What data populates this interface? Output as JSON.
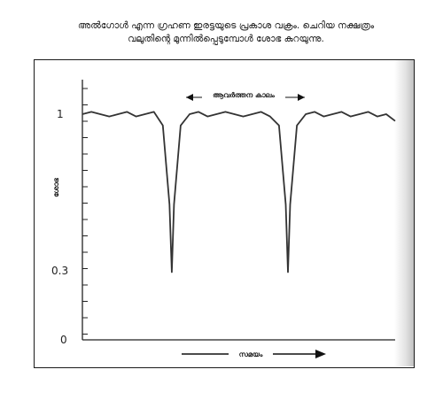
{
  "caption": {
    "line1": "അൽഗോൾ എന്ന ഗ്രഹണ ഇരട്ടയുടെ പ്രകാശ വക്രം. ചെറിയ നക്ഷത്രം",
    "line2": "വലുതിന്റെ മുന്നിൽപ്പെടുമ്പോൾ ശോഭ കുറയുന്നു."
  },
  "chart_data": {
    "type": "line",
    "ylabel": "ശോഭ",
    "xlabel": "സമയം",
    "ytick_labels": [
      "1",
      "0.3",
      "0"
    ],
    "ylim": [
      0,
      1.3
    ],
    "period_label": "ആവർത്തന കാലം",
    "series": [
      {
        "x": [
          0,
          2,
          4,
          6,
          8,
          10,
          12,
          14,
          16,
          18,
          19.5,
          20,
          20.5,
          22,
          24,
          26,
          28,
          30,
          32,
          34,
          36,
          38,
          40,
          42,
          44,
          45.5,
          46,
          46.5,
          48,
          50,
          52,
          54,
          56,
          58,
          60,
          62,
          64,
          66,
          68,
          70
        ],
        "values": [
          1,
          1.01,
          1,
          0.99,
          1,
          1.01,
          0.99,
          1,
          1.01,
          0.95,
          0.6,
          0.3,
          0.6,
          0.95,
          1,
          1.01,
          0.99,
          1,
          1.01,
          1,
          0.99,
          1,
          1.01,
          0.99,
          0.95,
          0.6,
          0.3,
          0.6,
          0.95,
          1,
          1.01,
          0.99,
          1,
          1.01,
          0.99,
          1,
          1.01,
          0.99,
          1,
          0.97
        ]
      }
    ],
    "grid": false
  }
}
